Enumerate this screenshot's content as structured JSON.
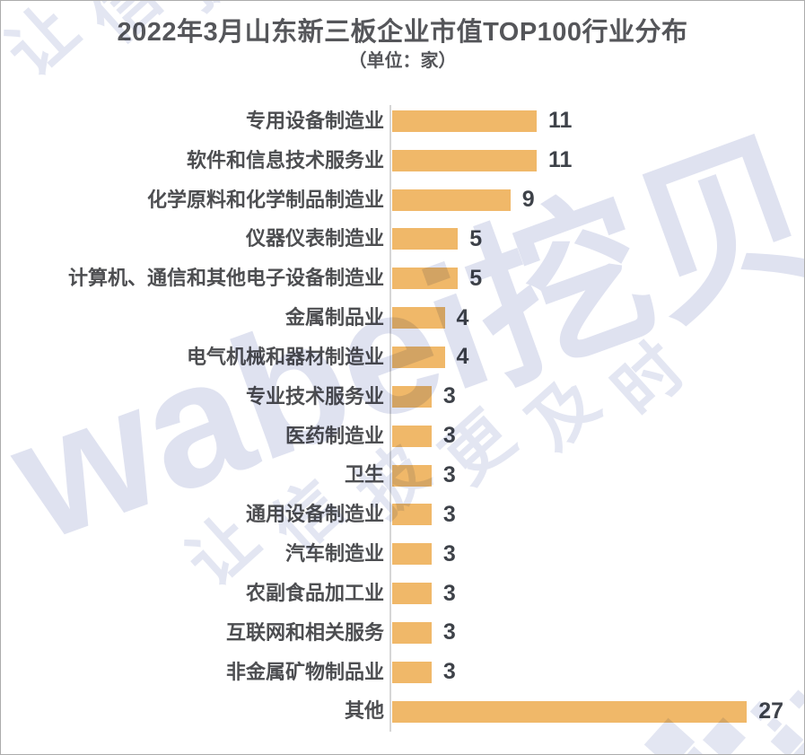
{
  "header": {
    "title": "2022年3月山东新三板企业市值TOP100行业分布",
    "unit_label": "（单位：家）"
  },
  "chart_data": {
    "type": "bar",
    "orientation": "horizontal",
    "title": "2022年3月山东新三板企业市值TOP100行业分布",
    "unit": "家",
    "categories": [
      "专用设备制造业",
      "软件和信息技术服务业",
      "化学原料和化学制品制造业",
      "仪器仪表制造业",
      "计算机、通信和其他电子设备制造业",
      "金属制品业",
      "电气机械和器材制造业",
      "专业技术服务业",
      "医药制造业",
      "卫生",
      "通用设备制造业",
      "汽车制造业",
      "农副食品加工业",
      "互联网和相关服务",
      "非金属矿物制品业",
      "其他"
    ],
    "values": [
      11,
      11,
      9,
      5,
      5,
      4,
      4,
      3,
      3,
      3,
      3,
      3,
      3,
      3,
      3,
      27
    ],
    "xlim": [
      0,
      27
    ],
    "data_labels": true,
    "grid": false,
    "legend": false,
    "bar_color": "#F0B869",
    "label_color": "#4D4E51",
    "value_color": "#3E4249",
    "axis_line_color": "#D6D6D6"
  },
  "watermark": {
    "brand": "wabei挖贝",
    "slogan": "让信披更及时",
    "color": "#E3E6F2"
  }
}
